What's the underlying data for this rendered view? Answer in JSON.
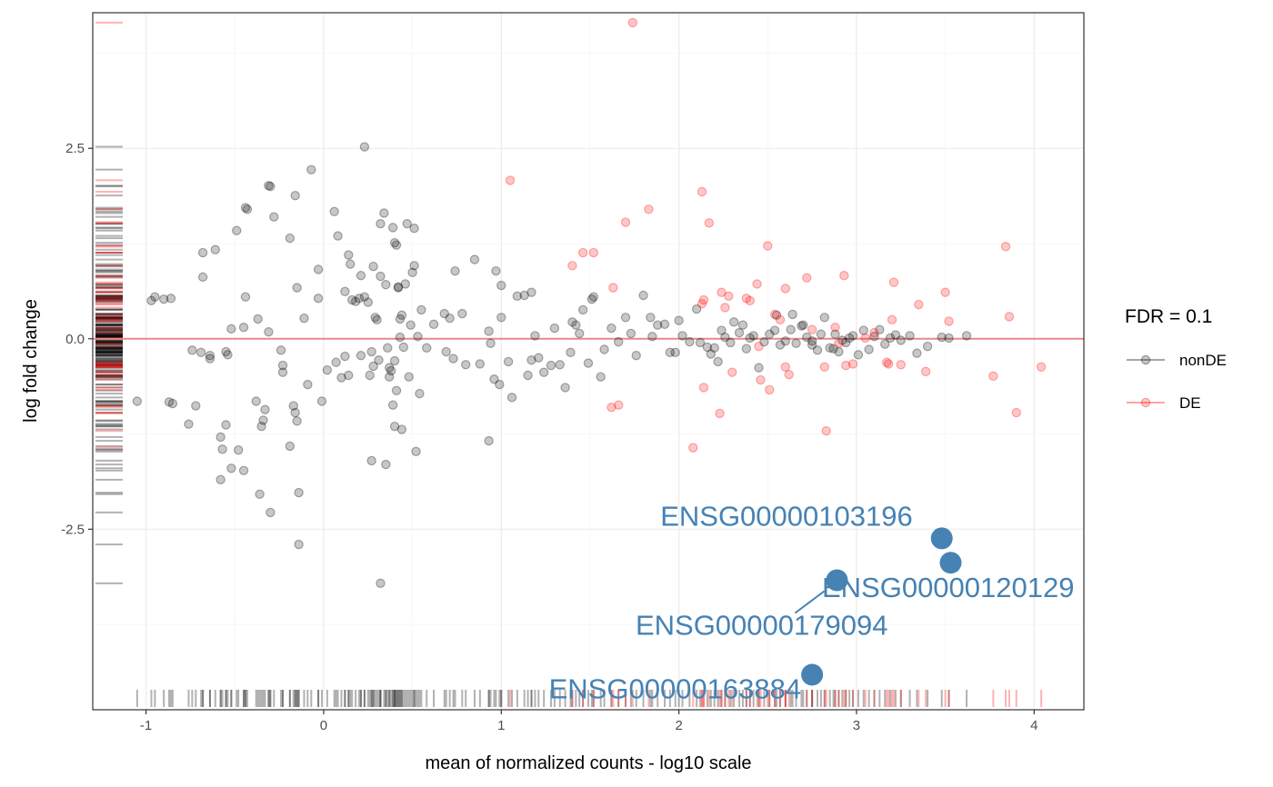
{
  "chart_data": {
    "type": "scatter",
    "title": "",
    "xlabel": "mean of normalized counts - log10 scale",
    "ylabel": "log fold change",
    "xlim": [
      -1.3,
      4.28
    ],
    "ylim": [
      -4.87,
      4.28
    ],
    "x_ticks": [
      -1,
      0,
      1,
      2,
      3,
      4
    ],
    "x_tick_labels": [
      "-1",
      "0",
      "1",
      "2",
      "3",
      "4"
    ],
    "y_ticks": [
      -2.5,
      0,
      2.5
    ],
    "y_tick_labels": [
      "-2.5",
      "0.0",
      "2.5"
    ],
    "grid": true,
    "reference_line": {
      "y": 0,
      "color": "#e88a8a"
    },
    "legend": {
      "title": "FDR = 0.1",
      "position": "right",
      "entries": [
        {
          "label": "nonDE",
          "color": "#000000"
        },
        {
          "label": "DE",
          "color": "#ff0000"
        }
      ]
    },
    "colors": {
      "nonDE": "#000000",
      "DE": "#ff0000",
      "highlight": "#4682b4"
    },
    "series": [
      {
        "name": "nonDE",
        "color": "#000000",
        "points": [
          [
            -0.97,
            0.5
          ],
          [
            -0.95,
            0.55
          ],
          [
            -0.9,
            0.52
          ],
          [
            -0.86,
            0.53
          ],
          [
            -1.05,
            -0.82
          ],
          [
            -0.87,
            -0.83
          ],
          [
            -0.85,
            -0.85
          ],
          [
            -0.72,
            -0.88
          ],
          [
            -0.74,
            -0.15
          ],
          [
            -0.69,
            -0.18
          ],
          [
            -0.64,
            -0.22
          ],
          [
            -0.64,
            -0.26
          ],
          [
            -0.55,
            -0.17
          ],
          [
            -0.54,
            -0.21
          ],
          [
            -0.68,
            0.81
          ],
          [
            -0.68,
            1.13
          ],
          [
            -0.61,
            1.17
          ],
          [
            -0.76,
            -1.12
          ],
          [
            -0.55,
            -1.13
          ],
          [
            -0.58,
            -1.29
          ],
          [
            -0.57,
            -1.45
          ],
          [
            -0.48,
            -1.46
          ],
          [
            -0.52,
            -1.7
          ],
          [
            -0.45,
            -1.73
          ],
          [
            -0.58,
            -1.85
          ],
          [
            -0.38,
            -0.82
          ],
          [
            -0.35,
            -1.15
          ],
          [
            -0.34,
            -1.07
          ],
          [
            -0.33,
            -0.93
          ],
          [
            -0.36,
            -2.04
          ],
          [
            -0.3,
            -2.28
          ],
          [
            -0.52,
            0.13
          ],
          [
            -0.45,
            0.15
          ],
          [
            -0.37,
            0.26
          ],
          [
            -0.31,
            0.09
          ],
          [
            -0.49,
            1.42
          ],
          [
            -0.44,
            1.72
          ],
          [
            -0.43,
            1.7
          ],
          [
            -0.31,
            2.01
          ],
          [
            -0.3,
            2.0
          ],
          [
            -0.28,
            1.6
          ],
          [
            -0.44,
            0.55
          ],
          [
            -0.24,
            -0.15
          ],
          [
            -0.23,
            -0.35
          ],
          [
            -0.23,
            -0.44
          ],
          [
            -0.19,
            -1.41
          ],
          [
            -0.17,
            -0.88
          ],
          [
            -0.15,
            -1.08
          ],
          [
            -0.16,
            -0.97
          ],
          [
            -0.14,
            -2.02
          ],
          [
            -0.14,
            -2.7
          ],
          [
            -0.16,
            1.88
          ],
          [
            -0.11,
            0.27
          ],
          [
            -0.19,
            1.32
          ],
          [
            -0.15,
            0.67
          ],
          [
            -0.09,
            -0.6
          ],
          [
            -0.07,
            2.22
          ],
          [
            -0.03,
            0.53
          ],
          [
            -0.03,
            0.91
          ],
          [
            -0.01,
            -0.82
          ],
          [
            0.02,
            -0.41
          ],
          [
            0.06,
            1.67
          ],
          [
            0.07,
            -0.31
          ],
          [
            0.08,
            1.35
          ],
          [
            0.1,
            -0.51
          ],
          [
            0.12,
            -0.23
          ],
          [
            0.14,
            -0.48
          ],
          [
            0.14,
            1.1
          ],
          [
            0.15,
            0.98
          ],
          [
            0.12,
            0.62
          ],
          [
            0.16,
            0.51
          ],
          [
            0.18,
            0.49
          ],
          [
            0.2,
            0.53
          ],
          [
            0.21,
            0.83
          ],
          [
            0.23,
            2.52
          ],
          [
            0.23,
            0.55
          ],
          [
            0.25,
            0.48
          ],
          [
            0.26,
            -0.48
          ],
          [
            0.28,
            0.95
          ],
          [
            0.29,
            0.28
          ],
          [
            0.3,
            0.25
          ],
          [
            0.32,
            1.51
          ],
          [
            0.31,
            -0.28
          ],
          [
            0.32,
            0.82
          ],
          [
            0.34,
            1.65
          ],
          [
            0.35,
            0.71
          ],
          [
            0.37,
            -0.38
          ],
          [
            0.38,
            -0.42
          ],
          [
            0.39,
            1.46
          ],
          [
            0.4,
            1.26
          ],
          [
            0.41,
            1.23
          ],
          [
            0.42,
            0.67
          ],
          [
            0.42,
            0.68
          ],
          [
            0.43,
            0.26
          ],
          [
            0.44,
            0.31
          ],
          [
            0.46,
            0.72
          ],
          [
            0.47,
            1.51
          ],
          [
            0.49,
            0.18
          ],
          [
            0.5,
            0.87
          ],
          [
            0.51,
            1.45
          ],
          [
            0.51,
            0.96
          ],
          [
            0.53,
            0.03
          ],
          [
            0.54,
            -0.72
          ],
          [
            0.55,
            0.38
          ],
          [
            0.27,
            -1.6
          ],
          [
            0.35,
            -1.65
          ],
          [
            0.32,
            -3.21
          ],
          [
            0.52,
            -1.48
          ],
          [
            0.4,
            -1.15
          ],
          [
            0.44,
            -1.19
          ],
          [
            0.48,
            -0.5
          ],
          [
            0.39,
            -0.87
          ],
          [
            0.41,
            -0.68
          ],
          [
            0.4,
            -0.29
          ],
          [
            0.28,
            -0.36
          ],
          [
            0.21,
            -0.22
          ],
          [
            0.37,
            -0.5
          ],
          [
            0.45,
            -0.11
          ],
          [
            0.27,
            -0.17
          ],
          [
            0.36,
            -0.12
          ],
          [
            0.43,
            0.02
          ],
          [
            0.58,
            -0.12
          ],
          [
            0.62,
            0.19
          ],
          [
            0.68,
            0.33
          ],
          [
            0.69,
            -0.17
          ],
          [
            0.71,
            0.27
          ],
          [
            0.73,
            -0.26
          ],
          [
            0.74,
            0.89
          ],
          [
            0.78,
            0.33
          ],
          [
            0.8,
            -0.34
          ],
          [
            0.85,
            1.04
          ],
          [
            0.88,
            -0.33
          ],
          [
            0.93,
            0.1
          ],
          [
            0.94,
            -0.06
          ],
          [
            0.93,
            -1.34
          ],
          [
            0.96,
            -0.53
          ],
          [
            0.97,
            0.89
          ],
          [
            0.99,
            -0.6
          ],
          [
            1.0,
            0.7
          ],
          [
            1.0,
            0.28
          ],
          [
            1.04,
            -0.3
          ],
          [
            1.06,
            -0.77
          ],
          [
            1.09,
            0.56
          ],
          [
            1.13,
            0.57
          ],
          [
            1.15,
            -0.48
          ],
          [
            1.17,
            -0.28
          ],
          [
            1.17,
            0.61
          ],
          [
            1.19,
            0.04
          ],
          [
            1.21,
            -0.25
          ],
          [
            1.24,
            -0.44
          ],
          [
            1.28,
            -0.35
          ],
          [
            1.3,
            0.14
          ],
          [
            1.33,
            -0.34
          ],
          [
            1.36,
            -0.64
          ],
          [
            1.39,
            -0.18
          ],
          [
            1.4,
            0.22
          ],
          [
            1.42,
            0.18
          ],
          [
            1.44,
            0.07
          ],
          [
            1.46,
            0.38
          ],
          [
            1.49,
            -0.32
          ],
          [
            1.51,
            0.52
          ],
          [
            1.52,
            0.55
          ],
          [
            1.56,
            -0.5
          ],
          [
            1.58,
            -0.14
          ],
          [
            1.62,
            0.14
          ],
          [
            1.66,
            -0.04
          ],
          [
            1.7,
            0.28
          ],
          [
            1.73,
            0.07
          ],
          [
            1.76,
            -0.22
          ],
          [
            1.8,
            0.57
          ],
          [
            1.84,
            0.28
          ],
          [
            1.85,
            0.03
          ],
          [
            1.88,
            0.18
          ],
          [
            1.92,
            0.19
          ],
          [
            1.95,
            -0.18
          ],
          [
            1.98,
            -0.18
          ],
          [
            2.0,
            0.24
          ],
          [
            2.02,
            0.04
          ],
          [
            2.06,
            -0.04
          ],
          [
            2.1,
            0.39
          ],
          [
            2.12,
            -0.05
          ],
          [
            2.16,
            -0.11
          ],
          [
            2.18,
            -0.2
          ],
          [
            2.2,
            -0.12
          ],
          [
            2.22,
            -0.3
          ],
          [
            2.24,
            0.11
          ],
          [
            2.26,
            0.02
          ],
          [
            2.29,
            -0.05
          ],
          [
            2.31,
            0.22
          ],
          [
            2.34,
            0.08
          ],
          [
            2.36,
            0.18
          ],
          [
            2.38,
            -0.13
          ],
          [
            2.4,
            0.01
          ],
          [
            2.42,
            0.04
          ],
          [
            2.45,
            -0.38
          ],
          [
            2.48,
            -0.04
          ],
          [
            2.51,
            0.06
          ],
          [
            2.54,
            0.11
          ],
          [
            2.57,
            -0.08
          ],
          [
            2.6,
            -0.03
          ],
          [
            2.63,
            0.12
          ],
          [
            2.66,
            -0.06
          ],
          [
            2.69,
            0.17
          ],
          [
            2.72,
            0.02
          ],
          [
            2.75,
            -0.08
          ],
          [
            2.78,
            -0.15
          ],
          [
            2.8,
            0.06
          ],
          [
            2.82,
            0.28
          ],
          [
            2.85,
            -0.12
          ],
          [
            2.88,
            0.06
          ],
          [
            2.9,
            -0.17
          ],
          [
            2.92,
            -0.02
          ],
          [
            2.94,
            -0.05
          ],
          [
            2.96,
            0.01
          ],
          [
            2.98,
            0.04
          ],
          [
            3.01,
            -0.21
          ],
          [
            3.04,
            0.11
          ],
          [
            3.07,
            -0.14
          ],
          [
            3.1,
            0.03
          ],
          [
            3.13,
            0.12
          ],
          [
            3.16,
            -0.07
          ],
          [
            3.19,
            0.01
          ],
          [
            3.22,
            0.05
          ],
          [
            3.25,
            -0.02
          ],
          [
            3.3,
            0.04
          ],
          [
            3.34,
            -0.19
          ],
          [
            3.4,
            -0.1
          ],
          [
            3.48,
            0.02
          ],
          [
            3.52,
            0.01
          ],
          [
            3.62,
            0.04
          ],
          [
            2.55,
            0.31
          ],
          [
            2.64,
            0.32
          ],
          [
            2.7,
            0.18
          ],
          [
            2.75,
            -0.03
          ],
          [
            2.87,
            -0.13
          ]
        ]
      },
      {
        "name": "DE",
        "color": "#ff0000",
        "points": [
          [
            1.74,
            4.15
          ],
          [
            1.05,
            2.08
          ],
          [
            1.4,
            0.96
          ],
          [
            1.46,
            1.13
          ],
          [
            1.52,
            1.13
          ],
          [
            1.63,
            0.67
          ],
          [
            1.62,
            -0.9
          ],
          [
            1.66,
            -0.87
          ],
          [
            1.7,
            1.53
          ],
          [
            1.83,
            1.7
          ],
          [
            2.08,
            -1.43
          ],
          [
            2.13,
            1.93
          ],
          [
            2.13,
            0.46
          ],
          [
            2.14,
            0.51
          ],
          [
            2.14,
            -0.64
          ],
          [
            2.17,
            1.52
          ],
          [
            2.23,
            -0.98
          ],
          [
            2.24,
            0.61
          ],
          [
            2.26,
            0.41
          ],
          [
            2.28,
            0.56
          ],
          [
            2.3,
            -0.44
          ],
          [
            2.38,
            0.53
          ],
          [
            2.4,
            0.5
          ],
          [
            2.44,
            0.72
          ],
          [
            2.46,
            -0.54
          ],
          [
            2.5,
            1.22
          ],
          [
            2.51,
            -0.67
          ],
          [
            2.54,
            0.32
          ],
          [
            2.57,
            0.25
          ],
          [
            2.6,
            -0.37
          ],
          [
            2.6,
            0.66
          ],
          [
            2.62,
            -0.47
          ],
          [
            2.72,
            0.8
          ],
          [
            2.75,
            0.12
          ],
          [
            2.82,
            -0.37
          ],
          [
            2.83,
            -1.21
          ],
          [
            2.88,
            0.15
          ],
          [
            2.93,
            0.83
          ],
          [
            2.94,
            -0.35
          ],
          [
            2.98,
            -0.33
          ],
          [
            3.05,
            0.01
          ],
          [
            3.1,
            0.08
          ],
          [
            3.18,
            -0.33
          ],
          [
            3.2,
            0.25
          ],
          [
            3.21,
            0.74
          ],
          [
            3.25,
            -0.34
          ],
          [
            3.35,
            0.45
          ],
          [
            3.39,
            -0.43
          ],
          [
            3.5,
            0.61
          ],
          [
            3.52,
            0.23
          ],
          [
            3.77,
            -0.49
          ],
          [
            3.84,
            1.21
          ],
          [
            3.86,
            0.29
          ],
          [
            3.9,
            -0.97
          ],
          [
            4.04,
            -0.37
          ],
          [
            3.17,
            -0.31
          ],
          [
            2.9,
            -0.06
          ],
          [
            2.45,
            -0.1
          ]
        ]
      }
    ],
    "highlighted_genes": [
      {
        "label": "ENSG00000103196",
        "x": 3.48,
        "y": -2.62,
        "color": "#4682b4"
      },
      {
        "label": "ENSG00000120129",
        "x": 3.53,
        "y": -2.94,
        "color": "#4682b4"
      },
      {
        "label": "ENSG00000179094",
        "x": 2.89,
        "y": -3.17,
        "color": "#4682b4"
      },
      {
        "label": "ENSG00000163884",
        "x": 2.75,
        "y": -4.41,
        "color": "#4682b4"
      }
    ]
  }
}
